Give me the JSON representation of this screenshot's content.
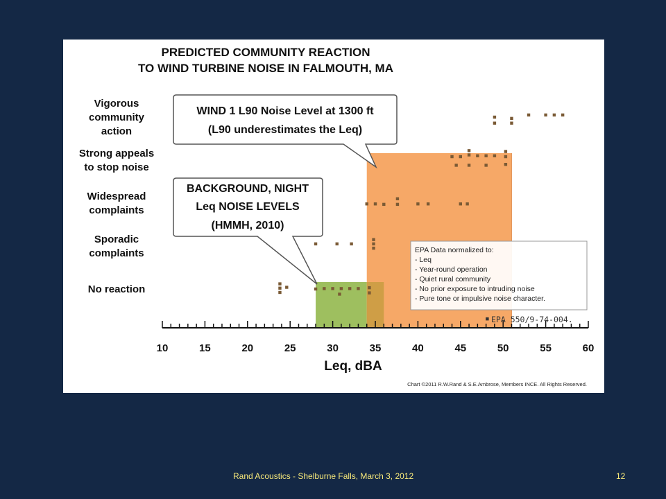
{
  "slide": {
    "footer": "Rand Acoustics - Shelburne Falls, March 3, 2012",
    "page_number": "12",
    "background_color": "#142845",
    "footer_color": "#f6e87a"
  },
  "chart_data": {
    "type": "scatter",
    "title_lines": [
      "PREDICTED COMMUNITY REACTION",
      "TO WIND TURBINE NOISE IN FALMOUTH, MA"
    ],
    "xlabel": "Leq, dBA",
    "xlim": [
      10,
      60
    ],
    "xticks": [
      10,
      15,
      20,
      25,
      30,
      35,
      40,
      45,
      50,
      55,
      60
    ],
    "y_categories": [
      [
        "No reaction"
      ],
      [
        "Sporadic",
        "complaints"
      ],
      [
        "Widespread",
        "complaints"
      ],
      [
        "Strong appeals",
        "to stop noise"
      ],
      [
        "Vigorous",
        "community",
        "action"
      ]
    ],
    "bands": [
      {
        "name": "background",
        "x_range": [
          28,
          34
        ],
        "y_level_top": 0,
        "color": "#9ebf5f"
      },
      {
        "name": "wind",
        "x_range": [
          34,
          51
        ],
        "y_level_top": 3,
        "color": "#f6a867"
      },
      {
        "name": "overlap",
        "x_range": [
          34,
          36
        ],
        "y_level_top": 0,
        "color": "#cf9e46"
      }
    ],
    "callouts": [
      {
        "lines": [
          "WIND 1 L90 Noise Level at 1300 ft",
          "(L90 underestimates the Leq)"
        ]
      },
      {
        "lines": [
          "BACKGROUND, NIGHT",
          "Leq NOISE LEVELS",
          "(HMMH, 2010)"
        ]
      }
    ],
    "legend": {
      "heading": "EPA Data normalized to:",
      "items": [
        "- Leq",
        "- Year-round operation",
        "- Quiet rural community",
        "- No prior exposure to intruding noise",
        "- Pure tone or impulsive noise character."
      ]
    },
    "source_marker": "▪",
    "source": "EPA 550/9-74-004.",
    "copyright": "Chart ©2011 R.W.Rand & S.E.Ambrose, Members INCE. All Rights Reserved.",
    "marker_color": "#7a5a35",
    "points": [
      {
        "x": 23.8,
        "y": 0.02
      },
      {
        "x": 23.8,
        "y": 0.12
      },
      {
        "x": 23.8,
        "y": -0.08
      },
      {
        "x": 24.6,
        "y": 0.04
      },
      {
        "x": 28.0,
        "y": 0.0
      },
      {
        "x": 29.0,
        "y": 0.01
      },
      {
        "x": 30.0,
        "y": 0.01
      },
      {
        "x": 31.0,
        "y": 0.01
      },
      {
        "x": 32.0,
        "y": 0.01
      },
      {
        "x": 33.0,
        "y": 0.01
      },
      {
        "x": 30.8,
        "y": -0.12
      },
      {
        "x": 34.3,
        "y": 0.03
      },
      {
        "x": 34.3,
        "y": -0.09
      },
      {
        "x": 28.0,
        "y": 1.05
      },
      {
        "x": 30.5,
        "y": 1.05
      },
      {
        "x": 32.2,
        "y": 1.05
      },
      {
        "x": 34.8,
        "y": 1.15
      },
      {
        "x": 34.8,
        "y": 1.05
      },
      {
        "x": 34.8,
        "y": 0.95
      },
      {
        "x": 34.0,
        "y": 1.98
      },
      {
        "x": 35.0,
        "y": 1.98
      },
      {
        "x": 36.0,
        "y": 1.97
      },
      {
        "x": 37.6,
        "y": 2.1
      },
      {
        "x": 37.6,
        "y": 1.97
      },
      {
        "x": 40.0,
        "y": 1.98
      },
      {
        "x": 41.2,
        "y": 1.98
      },
      {
        "x": 45.0,
        "y": 1.98
      },
      {
        "x": 45.8,
        "y": 1.98
      },
      {
        "x": 44.0,
        "y": 3.08
      },
      {
        "x": 45.0,
        "y": 3.08
      },
      {
        "x": 46.0,
        "y": 3.12
      },
      {
        "x": 46.0,
        "y": 3.22
      },
      {
        "x": 47.0,
        "y": 3.1
      },
      {
        "x": 48.0,
        "y": 3.1
      },
      {
        "x": 49.0,
        "y": 3.1
      },
      {
        "x": 50.3,
        "y": 3.2
      },
      {
        "x": 50.3,
        "y": 3.08
      },
      {
        "x": 44.5,
        "y": 2.88
      },
      {
        "x": 46.0,
        "y": 2.88
      },
      {
        "x": 48.0,
        "y": 2.88
      },
      {
        "x": 50.3,
        "y": 2.9
      },
      {
        "x": 49.0,
        "y": 4.0
      },
      {
        "x": 49.0,
        "y": 3.86
      },
      {
        "x": 51.0,
        "y": 3.97
      },
      {
        "x": 51.0,
        "y": 3.86
      },
      {
        "x": 53.0,
        "y": 4.05
      },
      {
        "x": 55.0,
        "y": 4.05
      },
      {
        "x": 56.0,
        "y": 4.05
      },
      {
        "x": 57.0,
        "y": 4.05
      }
    ]
  }
}
